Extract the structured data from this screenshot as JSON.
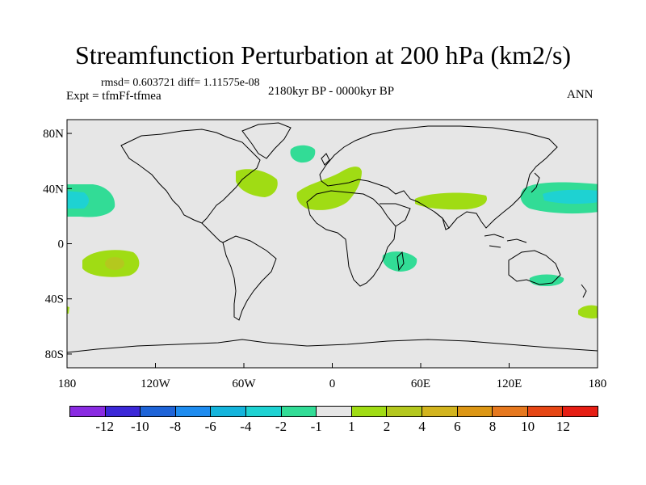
{
  "title": "Streamfunction Perturbation at 200 hPa (km2/s)",
  "labels": {
    "stats": "rmsd= 0.603721 diff= 1.11575e-08",
    "experiment": "Expt = tfmFf-tfmea",
    "period": "2180kyr BP - 0000kyr BP",
    "season": "ANN"
  },
  "axes": {
    "lat_ticks": [
      "80N",
      "40N",
      "0",
      "40S",
      "80S"
    ],
    "lon_ticks": [
      "180",
      "120W",
      "60W",
      "0",
      "60E",
      "120E",
      "180"
    ]
  },
  "colorbar": {
    "colors": [
      "#8a2be2",
      "#3c28d8",
      "#1e64d8",
      "#1e8cf0",
      "#14b4dc",
      "#1ed2d2",
      "#32dc96",
      "#e6e6e6",
      "#a0dc14",
      "#b4c81e",
      "#d2b41e",
      "#dc9614",
      "#e6781e",
      "#e64614",
      "#e61e14"
    ],
    "labels": [
      "-12",
      "-10",
      "-8",
      "-6",
      "-4",
      "-2",
      "-1",
      "1",
      "2",
      "4",
      "6",
      "8",
      "10",
      "12"
    ]
  }
}
